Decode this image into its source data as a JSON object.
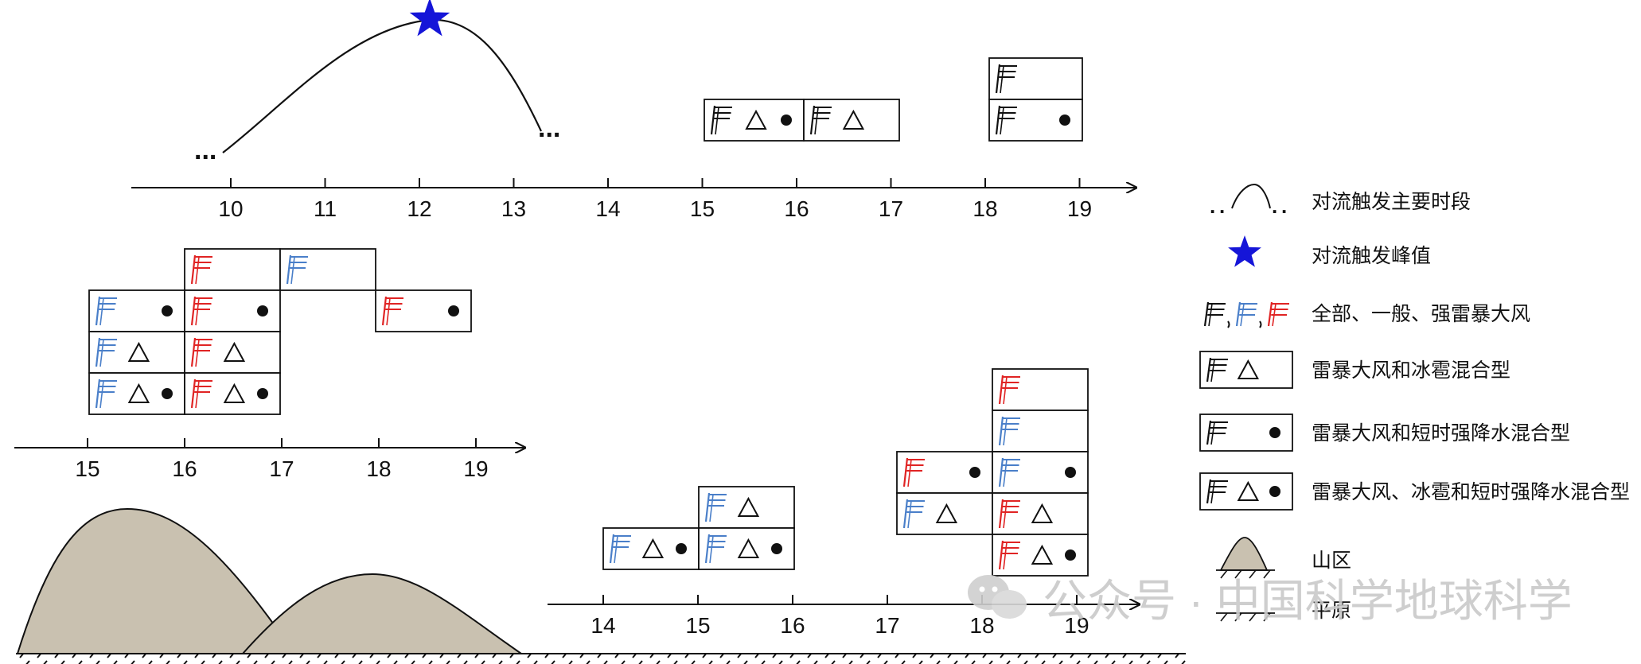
{
  "colors": {
    "all": "#111111",
    "general": "#4a7fc9",
    "strong": "#e02424",
    "peak_star": "#1515d8",
    "mountain": "#c9c1b0",
    "watermark": "#c9c9c9"
  },
  "timeline_top": {
    "ticks": [
      "10",
      "11",
      "12",
      "13",
      "14",
      "15",
      "16",
      "17",
      "18",
      "19"
    ],
    "ellipsis_left": "...",
    "ellipsis_right": "..."
  },
  "timeline_mountain": {
    "ticks": [
      "15",
      "16",
      "17",
      "18",
      "19"
    ]
  },
  "timeline_plain": {
    "ticks": [
      "14",
      "15",
      "16",
      "17",
      "18",
      "19"
    ]
  },
  "legend": {
    "items": [
      {
        "icon": "convection-curve-icon",
        "label": "对流触发主要时段"
      },
      {
        "icon": "star-icon",
        "label": "对流触发峰值"
      },
      {
        "icon": "flag-triple-icon",
        "label": "全部、一般、强雷暴大风"
      },
      {
        "icon": "wind-hail-box-icon",
        "label": "雷暴大风和冰雹混合型"
      },
      {
        "icon": "wind-rain-box-icon",
        "label": "雷暴大风和短时强降水混合型"
      },
      {
        "icon": "wind-hail-rain-box-icon",
        "label": "雷暴大风、冰雹和短时强降水混合型"
      },
      {
        "icon": "mountain-icon",
        "label": "山区"
      },
      {
        "icon": "plain-icon",
        "label": "平原"
      }
    ]
  },
  "watermark": {
    "text": "公众号 · 中国科学地球科学"
  }
}
